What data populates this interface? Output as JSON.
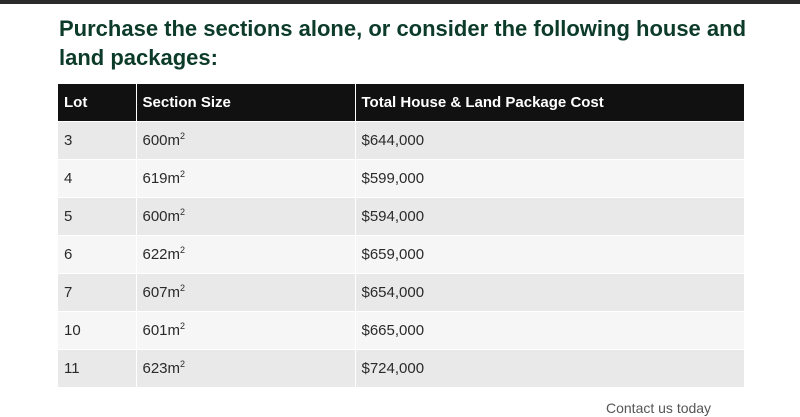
{
  "heading": "Purchase the sections alone, or consider the following house and land packages:",
  "table": {
    "headers": [
      "Lot",
      "Section Size",
      "Total House & Land Package Cost"
    ],
    "unit_suffix": "m",
    "unit_superscript": "2",
    "rows": [
      {
        "lot": "3",
        "size": "600",
        "cost": "$644,000"
      },
      {
        "lot": "4",
        "size": "619",
        "cost": "$599,000"
      },
      {
        "lot": "5",
        "size": "600",
        "cost": "$594,000"
      },
      {
        "lot": "6",
        "size": "622",
        "cost": "$659,000"
      },
      {
        "lot": "7",
        "size": "607",
        "cost": "$654,000"
      },
      {
        "lot": "10",
        "size": "601",
        "cost": "$665,000"
      },
      {
        "lot": "11",
        "size": "623",
        "cost": "$724,000"
      }
    ]
  },
  "truncated_text": "Contact us today"
}
